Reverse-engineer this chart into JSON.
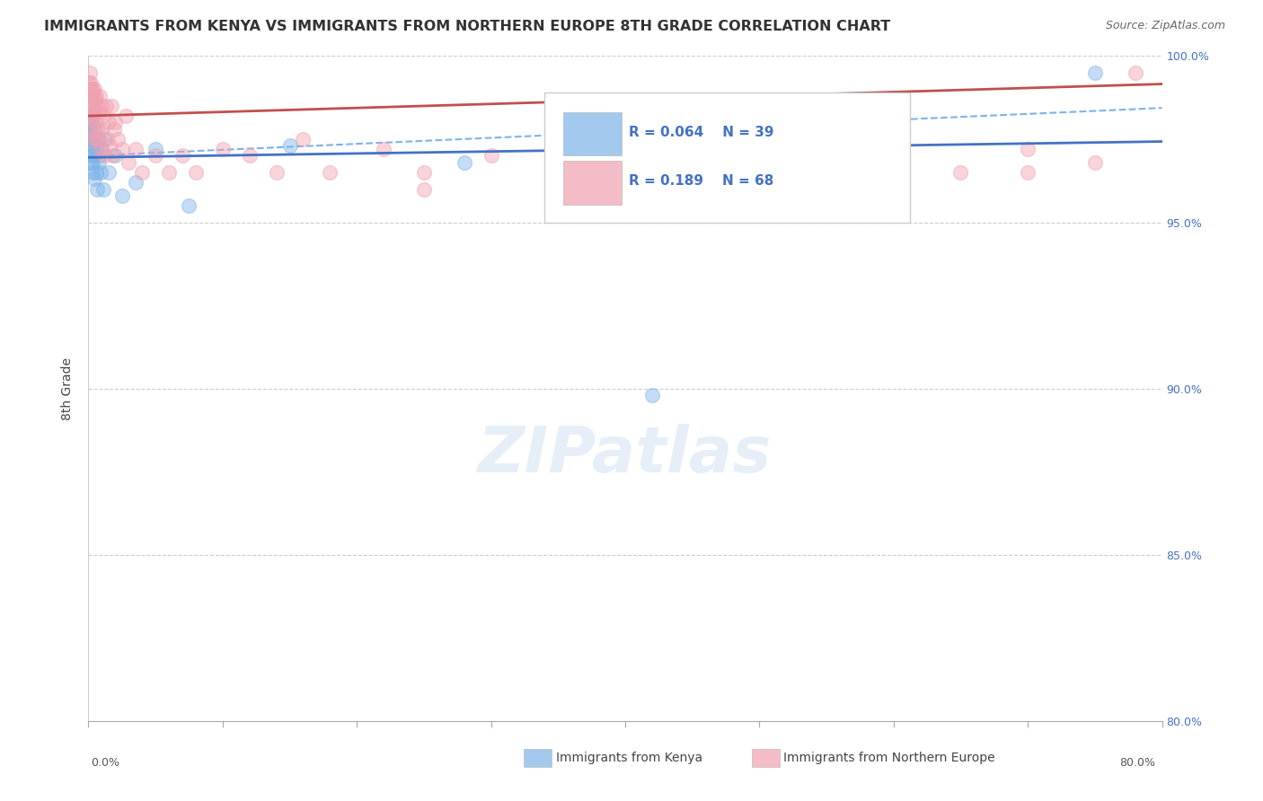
{
  "title": "IMMIGRANTS FROM KENYA VS IMMIGRANTS FROM NORTHERN EUROPE 8TH GRADE CORRELATION CHART",
  "source": "Source: ZipAtlas.com",
  "legend_label1": "Immigrants from Kenya",
  "legend_label2": "Immigrants from Northern Europe",
  "ylabel": "8th Grade",
  "xlim": [
    0.0,
    80.0
  ],
  "ylim": [
    80.0,
    100.0
  ],
  "yticks_right": [
    80.0,
    85.0,
    90.0,
    95.0,
    100.0
  ],
  "legend_R1": "R = 0.064",
  "legend_N1": "N = 39",
  "legend_R2": "R = 0.189",
  "legend_N2": "N = 68",
  "color_kenya": "#7db3e8",
  "color_north_europe": "#f0a0b0",
  "color_line_kenya": "#4472C4",
  "color_line_north_europe": "#C0504D",
  "color_dashed": "#7db3e8",
  "background_color": "#ffffff",
  "grid_color": "#cccccc",
  "watermark_text": "ZIPatlas",
  "kenya_x": [
    0.05,
    0.08,
    0.1,
    0.12,
    0.15,
    0.18,
    0.2,
    0.22,
    0.25,
    0.28,
    0.3,
    0.32,
    0.35,
    0.4,
    0.45,
    0.5,
    0.55,
    0.6,
    0.65,
    0.7,
    0.75,
    0.8,
    0.9,
    1.0,
    1.1,
    1.2,
    1.5,
    2.0,
    2.5,
    3.5,
    5.0,
    7.5,
    15.0,
    28.0,
    35.0,
    38.0,
    42.0,
    75.0,
    0.04
  ],
  "kenya_y": [
    97.8,
    97.5,
    98.0,
    97.2,
    98.2,
    96.8,
    97.5,
    97.0,
    98.0,
    96.5,
    97.3,
    96.8,
    97.0,
    97.5,
    96.3,
    97.8,
    96.5,
    97.2,
    96.0,
    97.5,
    96.8,
    97.0,
    96.5,
    97.2,
    96.0,
    97.5,
    96.5,
    97.0,
    95.8,
    96.2,
    97.2,
    95.5,
    97.3,
    96.8,
    97.0,
    97.2,
    89.8,
    99.5,
    97.8
  ],
  "north_europe_x": [
    0.05,
    0.08,
    0.1,
    0.12,
    0.15,
    0.18,
    0.2,
    0.22,
    0.25,
    0.28,
    0.3,
    0.32,
    0.35,
    0.38,
    0.4,
    0.42,
    0.45,
    0.48,
    0.5,
    0.55,
    0.6,
    0.65,
    0.7,
    0.75,
    0.8,
    0.85,
    0.9,
    0.95,
    1.0,
    1.1,
    1.2,
    1.3,
    1.4,
    1.5,
    1.6,
    1.7,
    1.8,
    1.9,
    2.0,
    2.2,
    2.5,
    2.8,
    3.0,
    3.5,
    4.0,
    5.0,
    6.0,
    7.0,
    8.0,
    10.0,
    12.0,
    14.0,
    16.0,
    18.0,
    22.0,
    25.0,
    30.0,
    35.0,
    40.0,
    50.0,
    55.0,
    60.0,
    65.0,
    70.0,
    75.0,
    78.0,
    25.0,
    70.0
  ],
  "north_europe_y": [
    99.2,
    98.8,
    99.5,
    98.5,
    99.0,
    98.2,
    99.2,
    98.5,
    98.8,
    97.8,
    98.5,
    99.0,
    98.2,
    98.8,
    97.5,
    99.0,
    98.3,
    98.7,
    98.0,
    98.8,
    97.5,
    98.5,
    97.8,
    98.3,
    97.5,
    98.8,
    97.2,
    98.5,
    97.8,
    98.2,
    97.0,
    98.5,
    97.5,
    98.0,
    97.3,
    98.5,
    97.0,
    97.8,
    98.0,
    97.5,
    97.2,
    98.2,
    96.8,
    97.2,
    96.5,
    97.0,
    96.5,
    97.0,
    96.5,
    97.2,
    97.0,
    96.5,
    97.5,
    96.5,
    97.2,
    96.5,
    97.0,
    96.8,
    96.5,
    97.0,
    96.5,
    97.0,
    96.5,
    97.2,
    96.8,
    99.5,
    96.0,
    96.5
  ]
}
